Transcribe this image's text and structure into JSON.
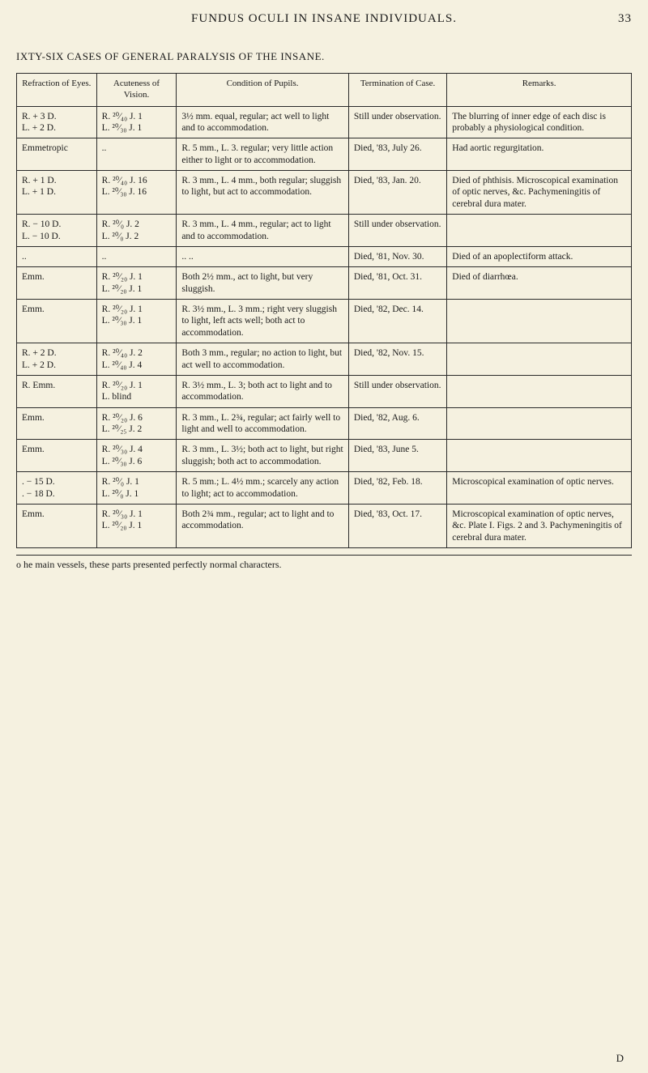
{
  "header": {
    "title": "FUNDUS OCULI IN INSANE INDIVIDUALS.",
    "page_number": "33"
  },
  "caption": "IXTY-SIX CASES OF GENERAL PARALYSIS OF THE INSANE.",
  "columns": [
    "Refraction of Eyes.",
    "Acuteness of Vision.",
    "Condition of Pupils.",
    "Termination of Case.",
    "Remarks."
  ],
  "rows": [
    {
      "refraction": "R. + 3 D.\nL. + 2 D.",
      "acuteness": "R. ²⁰⁄₄₀ J. 1\nL. ²⁰⁄₃₀ J. 1",
      "pupils": "3½ mm. equal, regular; act well to light and to accommodation.",
      "termination": "Still under observation.",
      "remarks": "The blurring of inner edge of each disc is probably a physiological condition."
    },
    {
      "refraction": "Emmetropic",
      "acuteness": "..",
      "pupils": "R. 5 mm., L. 3. regular; very little action either to light or to accommodation.",
      "termination": "Died, '83, July 26.",
      "remarks": "Had aortic regurgitation."
    },
    {
      "refraction": "R. + 1 D.\nL. + 1 D.",
      "acuteness": "R. ²⁰⁄₄₀ J. 16\nL. ²⁰⁄₃₀ J. 16",
      "pupils": "R. 3 mm., L. 4 mm., both regular; sluggish to light, but act to accommodation.",
      "termination": "Died, '83, Jan. 20.",
      "remarks": "Died of phthisis. Microscopical examination of optic nerves, &c. Pachymeningitis of cerebral dura mater."
    },
    {
      "refraction": "R. − 10 D.\nL. − 10 D.",
      "acuteness": "R. ²⁰⁄₀ J. 2\nL. ²⁰⁄₀ J. 2",
      "pupils": "R. 3 mm., L. 4 mm., regular; act to light and to accommodation.",
      "termination": "Still under observation.",
      "remarks": ""
    },
    {
      "refraction": "..",
      "acuteness": "..",
      "pupils": "..    ..",
      "termination": "Died, '81, Nov. 30.",
      "remarks": "Died of an apoplectiform attack."
    },
    {
      "refraction": "Emm.",
      "acuteness": "R. ²⁰⁄₂₀ J. 1\nL. ²⁰⁄₂₀ J. 1",
      "pupils": "Both 2½ mm., act to light, but very sluggish.",
      "termination": "Died, '81, Oct. 31.",
      "remarks": "Died of diarrhœa."
    },
    {
      "refraction": "Emm.",
      "acuteness": "R. ²⁰⁄₂₀ J. 1\nL. ²⁰⁄₃₀ J. 1",
      "pupils": "R. 3½ mm., L. 3 mm.; right very sluggish to light, left acts well; both act to accommodation.",
      "termination": "Died, '82, Dec. 14.",
      "remarks": ""
    },
    {
      "refraction": "R. + 2 D.\nL. + 2 D.",
      "acuteness": "R. ²⁰⁄₄₀ J. 2\nL. ²⁰⁄₄₀ J. 4",
      "pupils": "Both 3 mm., regular; no action to light, but act well to accommodation.",
      "termination": "Died, '82, Nov. 15.",
      "remarks": ""
    },
    {
      "refraction": "R. Emm.",
      "acuteness": "R. ²⁰⁄₂₀ J. 1\nL. blind",
      "pupils": "R. 3½ mm., L. 3; both act to light and to accommodation.",
      "termination": "Still under observation.",
      "remarks": ""
    },
    {
      "refraction": "Emm.",
      "acuteness": "R. ²⁰⁄₂₀ J. 6\nL. ²⁰⁄₂₅ J. 2",
      "pupils": "R. 3 mm., L. 2¾, regular; act fairly well to light and well to accommodation.",
      "termination": "Died, '82, Aug. 6.",
      "remarks": ""
    },
    {
      "refraction": "Emm.",
      "acuteness": "R. ²⁰⁄₃₀ J. 4\nL. ²⁰⁄₃₀ J. 6",
      "pupils": "R. 3 mm., L. 3½; both act to light, but right sluggish; both act to accommodation.",
      "termination": "Died, '83, June 5.",
      "remarks": ""
    },
    {
      "refraction": ". − 15 D.\n. − 18 D.",
      "acuteness": "R. ²⁰⁄₀ J. 1\nL. ²⁰⁄₀ J. 1",
      "pupils": "R. 5 mm.; L. 4½ mm.; scarcely any action to light; act to accommodation.",
      "termination": "Died, '82, Feb. 18.",
      "remarks": "Microscopical examination of optic nerves."
    },
    {
      "refraction": "Emm.",
      "acuteness": "R. ²⁰⁄₃₀ J. 1\nL. ²⁰⁄₂₀ J. 1",
      "pupils": "Both 2¾ mm., regular; act to light and to accommodation.",
      "termination": "Died, '83, Oct. 17.",
      "remarks": "Microscopical examination of optic nerves, &c. Plate I. Figs. 2 and 3. Pachymeningitis of cerebral dura mater."
    }
  ],
  "footer_note": "o he main vessels, these parts presented perfectly normal characters.",
  "page_footer_d": "D"
}
